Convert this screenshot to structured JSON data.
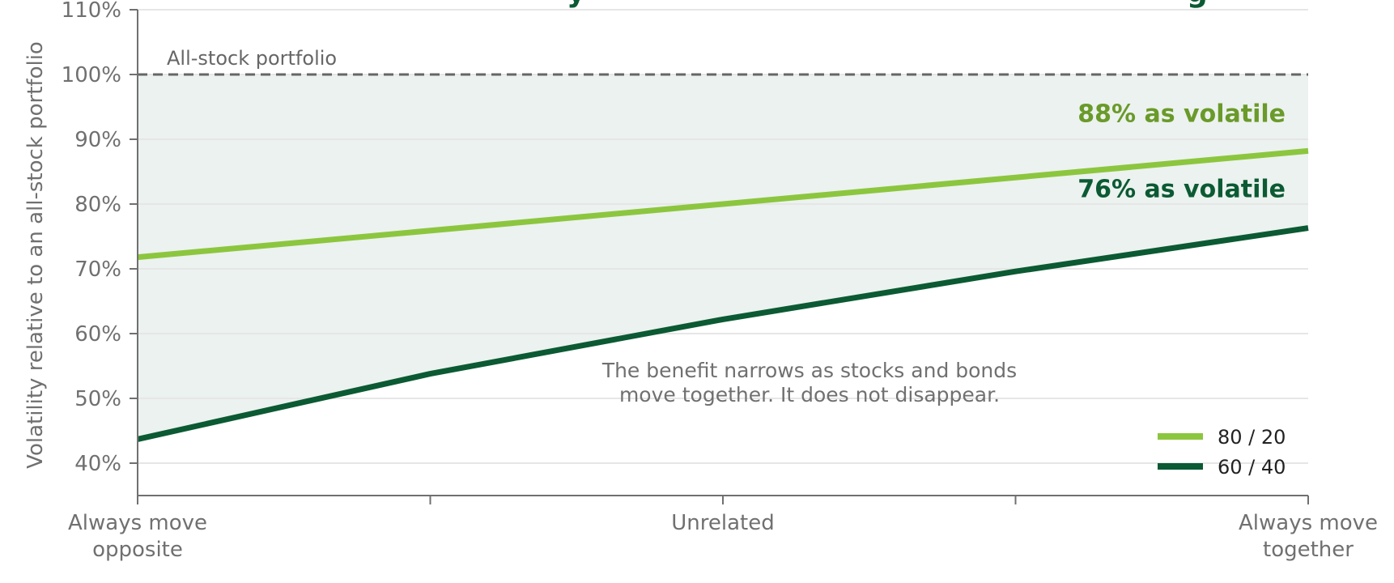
{
  "chart_data": {
    "type": "line",
    "title_fragment": "…y … g",
    "ylabel": "Volatility relative to an all-stock portfolio",
    "xlabel": "",
    "y_tick_labels": [
      "40%",
      "50%",
      "60%",
      "70%",
      "80%",
      "90%",
      "100%",
      "110%"
    ],
    "y_ticks": [
      40,
      50,
      60,
      70,
      80,
      90,
      100,
      110
    ],
    "ylim": [
      35,
      110
    ],
    "x_tick_labels": [
      {
        "line1": "Always move",
        "line2": "opposite",
        "x": -1
      },
      {
        "line1": "Unrelated",
        "line2": "",
        "x": 0
      },
      {
        "line1": "Always move",
        "line2": "together",
        "x": 1
      }
    ],
    "x_minor_ticks": [
      -0.5,
      0.5
    ],
    "xlim": [
      -1,
      1
    ],
    "grid": "horizontal",
    "legend_position": "bottom-right",
    "series": [
      {
        "name": "80 / 20",
        "color": "#8cc63f",
        "x": [
          -1,
          1
        ],
        "y": [
          71.8,
          88.2
        ],
        "end_label": "88% as volatile",
        "label_color": "#6a9a2a"
      },
      {
        "name": "60 / 40",
        "color": "#0b5a33",
        "x": [
          -1,
          -0.5,
          0,
          0.5,
          1
        ],
        "y": [
          43.7,
          53.8,
          62.2,
          69.6,
          76.3
        ],
        "end_label": "76% as volatile",
        "label_color": "#0b5a33"
      }
    ],
    "reference_line": {
      "y": 100,
      "label": "All-stock portfolio",
      "color": "#666666"
    },
    "shaded_region": {
      "between": [
        "reference_line",
        "60 / 40"
      ],
      "color": "#ecf2ef"
    },
    "annotation": {
      "line1": "The benefit narrows as stocks and bonds",
      "line2": "move together. It does not disappear."
    }
  }
}
